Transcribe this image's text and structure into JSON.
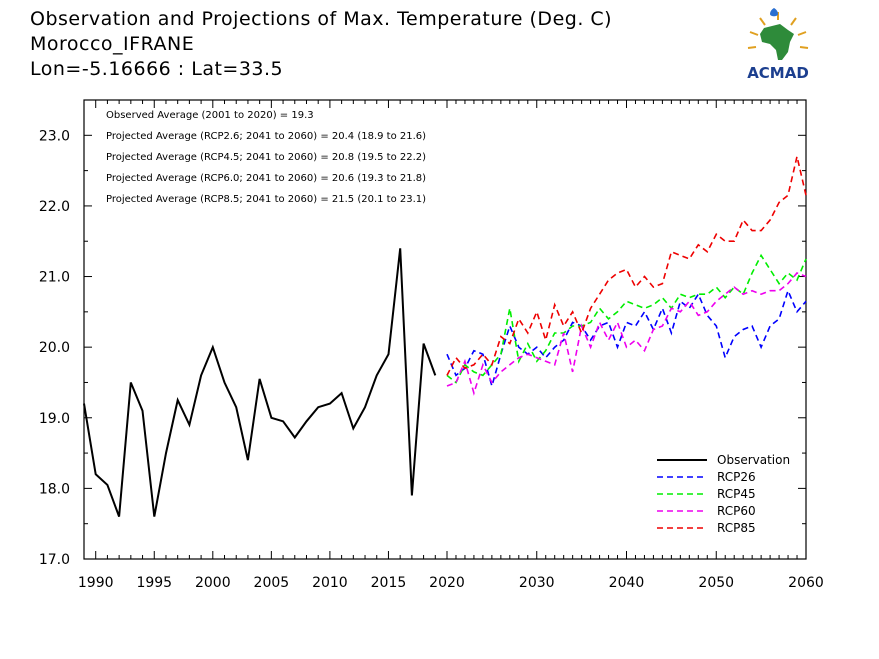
{
  "header": {
    "line1": "Observation and Projections of Max. Temperature (Deg. C)",
    "line2": "Morocco_IFRANE",
    "line3": "Lon=-5.16666 : Lat=33.5"
  },
  "logo": {
    "text": "ACMAD"
  },
  "colors": {
    "observation": "#000000",
    "rcp26": "#0000ff",
    "rcp45": "#00ee00",
    "rcp60": "#ee00ee",
    "rcp85": "#ee0000"
  },
  "chart_data": {
    "type": "line",
    "xlim": [
      1989,
      2060
    ],
    "ylim": [
      17.0,
      23.5
    ],
    "xticks": [
      1990,
      1995,
      2000,
      2005,
      2010,
      2015,
      2020,
      2030,
      2040,
      2050,
      2060
    ],
    "yticks": [
      17.0,
      18.0,
      19.0,
      20.0,
      21.0,
      22.0,
      23.0
    ],
    "annotations": [
      "Observed Average (2001 to 2020) = 19.3",
      "Projected Average (RCP2.6; 2041 to 2060) = 20.4 (18.9 to 21.6)",
      "Projected Average (RCP4.5; 2041 to 2060) = 20.8 (19.5 to 22.2)",
      "Projected Average (RCP6.0; 2041 to 2060) = 20.6 (19.3 to 21.8)",
      "Projected Average (RCP8.5; 2041 to 2060) = 21.5 (20.1 to 23.1)"
    ],
    "legend_position": "bottom-right",
    "series": [
      {
        "name": "Observation",
        "style": "solid",
        "x": [
          1989,
          1990,
          1991,
          1992,
          1993,
          1994,
          1995,
          1996,
          1997,
          1998,
          1999,
          2000,
          2001,
          2002,
          2003,
          2004,
          2005,
          2006,
          2007,
          2008,
          2009,
          2010,
          2011,
          2012,
          2013,
          2014,
          2015,
          2016,
          2017,
          2018,
          2019
        ],
        "y": [
          19.2,
          18.2,
          18.05,
          17.6,
          19.5,
          19.1,
          17.6,
          18.5,
          19.25,
          18.9,
          19.6,
          20.0,
          19.5,
          19.15,
          18.4,
          19.55,
          19.0,
          18.95,
          18.72,
          18.95,
          19.15,
          19.2,
          19.35,
          18.85,
          19.15,
          19.6,
          19.9,
          21.4,
          17.9,
          20.05,
          19.6
        ]
      },
      {
        "name": "RCP26",
        "style": "dashed",
        "x": [
          2020,
          2021,
          2022,
          2023,
          2024,
          2025,
          2026,
          2027,
          2028,
          2029,
          2030,
          2031,
          2032,
          2033,
          2034,
          2035,
          2036,
          2037,
          2038,
          2039,
          2040,
          2041,
          2042,
          2043,
          2044,
          2045,
          2046,
          2047,
          2048,
          2049,
          2050,
          2051,
          2052,
          2053,
          2054,
          2055,
          2056,
          2057,
          2058,
          2059,
          2060
        ],
        "y": [
          19.9,
          19.6,
          19.7,
          19.95,
          19.9,
          19.45,
          19.9,
          20.3,
          20.0,
          19.9,
          20.0,
          19.85,
          20.0,
          20.1,
          20.35,
          20.3,
          20.1,
          20.3,
          20.35,
          20.0,
          20.35,
          20.3,
          20.5,
          20.25,
          20.55,
          20.2,
          20.65,
          20.55,
          20.75,
          20.45,
          20.3,
          19.85,
          20.15,
          20.25,
          20.3,
          20.0,
          20.3,
          20.4,
          20.8,
          20.5,
          20.65
        ]
      },
      {
        "name": "RCP45",
        "style": "dashed",
        "x": [
          2020,
          2021,
          2022,
          2023,
          2024,
          2025,
          2026,
          2027,
          2028,
          2029,
          2030,
          2031,
          2032,
          2033,
          2034,
          2035,
          2036,
          2037,
          2038,
          2039,
          2040,
          2041,
          2042,
          2043,
          2044,
          2045,
          2046,
          2047,
          2048,
          2049,
          2050,
          2051,
          2052,
          2053,
          2054,
          2055,
          2056,
          2057,
          2058,
          2059,
          2060
        ],
        "y": [
          19.6,
          19.5,
          19.75,
          19.65,
          19.6,
          19.75,
          19.9,
          20.55,
          19.8,
          20.05,
          19.8,
          19.95,
          20.2,
          20.2,
          20.3,
          20.3,
          20.35,
          20.55,
          20.4,
          20.5,
          20.65,
          20.6,
          20.55,
          20.6,
          20.7,
          20.55,
          20.75,
          20.7,
          20.75,
          20.75,
          20.85,
          20.7,
          20.85,
          20.75,
          21.05,
          21.3,
          21.1,
          20.9,
          21.05,
          20.95,
          21.25
        ]
      },
      {
        "name": "RCP60",
        "style": "dashed",
        "x": [
          2020,
          2021,
          2022,
          2023,
          2024,
          2025,
          2026,
          2027,
          2028,
          2029,
          2030,
          2031,
          2032,
          2033,
          2034,
          2035,
          2036,
          2037,
          2038,
          2039,
          2040,
          2041,
          2042,
          2043,
          2044,
          2045,
          2046,
          2047,
          2048,
          2049,
          2050,
          2051,
          2052,
          2053,
          2054,
          2055,
          2056,
          2057,
          2058,
          2059,
          2060
        ],
        "y": [
          19.45,
          19.5,
          19.8,
          19.35,
          19.75,
          19.5,
          19.65,
          19.75,
          19.85,
          19.9,
          19.85,
          19.8,
          19.75,
          20.2,
          19.65,
          20.3,
          20.0,
          20.35,
          20.1,
          20.35,
          20.0,
          20.1,
          19.95,
          20.25,
          20.3,
          20.55,
          20.5,
          20.65,
          20.45,
          20.5,
          20.65,
          20.75,
          20.85,
          20.75,
          20.8,
          20.75,
          20.8,
          20.8,
          20.9,
          21.05,
          21.0
        ]
      },
      {
        "name": "RCP85",
        "style": "dashed",
        "x": [
          2020,
          2021,
          2022,
          2023,
          2024,
          2025,
          2026,
          2027,
          2028,
          2029,
          2030,
          2031,
          2032,
          2033,
          2034,
          2035,
          2036,
          2037,
          2038,
          2039,
          2040,
          2041,
          2042,
          2043,
          2044,
          2045,
          2046,
          2047,
          2048,
          2049,
          2050,
          2051,
          2052,
          2053,
          2054,
          2055,
          2056,
          2057,
          2058,
          2059,
          2060
        ],
        "y": [
          19.6,
          19.85,
          19.7,
          19.75,
          19.9,
          19.75,
          20.15,
          20.05,
          20.4,
          20.2,
          20.5,
          20.1,
          20.6,
          20.3,
          20.5,
          20.2,
          20.55,
          20.75,
          20.95,
          21.05,
          21.1,
          20.85,
          21.0,
          20.85,
          20.9,
          21.35,
          21.3,
          21.25,
          21.45,
          21.35,
          21.6,
          21.5,
          21.5,
          21.8,
          21.65,
          21.65,
          21.8,
          22.05,
          22.15,
          22.7,
          22.15
        ]
      }
    ]
  }
}
